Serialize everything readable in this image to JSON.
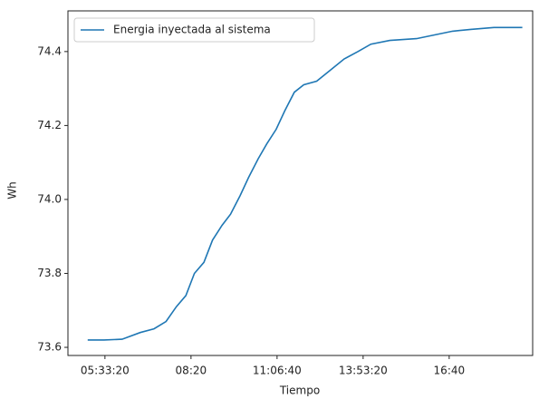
{
  "chart_data": {
    "type": "line",
    "x_label": "Tiempo",
    "y_label": "Wh",
    "x": [
      18000,
      19900,
      22000,
      24100,
      25700,
      27100,
      28300,
      29400,
      30400,
      31500,
      32500,
      33600,
      34600,
      35700,
      36700,
      37800,
      38800,
      39900,
      40900,
      42000,
      43100,
      44600,
      46200,
      47800,
      49400,
      50900,
      53100,
      56200,
      58300,
      60400,
      62500,
      65200,
      68500
    ],
    "series": [
      {
        "name": "Energia inyectada al sistema",
        "color": "#1f77b4",
        "values": [
          73.62,
          73.62,
          73.622,
          73.64,
          73.65,
          73.67,
          73.71,
          73.74,
          73.8,
          73.83,
          73.89,
          73.93,
          73.96,
          74.01,
          74.06,
          74.11,
          74.15,
          74.19,
          74.24,
          74.29,
          74.31,
          74.32,
          74.35,
          74.38,
          74.4,
          74.42,
          74.43,
          74.435,
          74.445,
          74.455,
          74.46,
          74.465,
          74.465
        ]
      }
    ],
    "xlim": [
      15700,
      69700
    ],
    "xticks": [
      {
        "value": 20000,
        "label": "05:33:20"
      },
      {
        "value": 30000,
        "label": "08:20"
      },
      {
        "value": 40000,
        "label": "11:06:40"
      },
      {
        "value": 50000,
        "label": "13:53:20"
      },
      {
        "value": 60000,
        "label": "16:40"
      }
    ],
    "ylim": [
      73.578,
      74.51
    ],
    "yticks": [
      {
        "value": 73.6,
        "label": "73.6"
      },
      {
        "value": 73.8,
        "label": "73.8"
      },
      {
        "value": 74.0,
        "label": "74.0"
      },
      {
        "value": 74.2,
        "label": "74.2"
      },
      {
        "value": 74.4,
        "label": "74.4"
      }
    ],
    "grid": false,
    "legend": "upper left"
  }
}
